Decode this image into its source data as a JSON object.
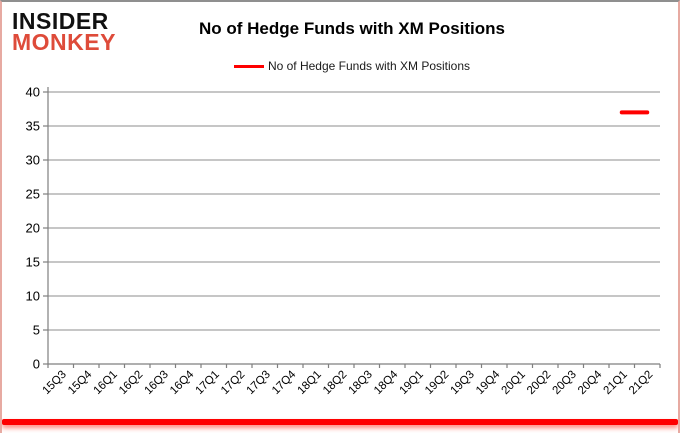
{
  "brand": {
    "line1": "INSIDER",
    "line2": "MONKEY"
  },
  "header": {
    "title": "No of Hedge Funds with XM Positions",
    "legend_label": "No of Hedge Funds with XM Positions"
  },
  "colors": {
    "series": "#fe0000",
    "grid": "#8c8c8c",
    "axis": "#7f7f7f",
    "tick_text": "#000000",
    "brand_red": "#de4b3a",
    "bottom_bar": "#fe0000"
  },
  "chart_data": {
    "type": "line",
    "title": "No of Hedge Funds with XM Positions",
    "xlabel": "",
    "ylabel": "",
    "categories": [
      "15Q3",
      "15Q4",
      "16Q1",
      "16Q2",
      "16Q3",
      "16Q4",
      "17Q1",
      "17Q2",
      "17Q3",
      "17Q4",
      "18Q1",
      "18Q2",
      "18Q3",
      "18Q4",
      "19Q1",
      "19Q2",
      "19Q3",
      "19Q4",
      "20Q1",
      "20Q2",
      "20Q3",
      "20Q4",
      "21Q1",
      "21Q2"
    ],
    "series": [
      {
        "name": "No of Hedge Funds with XM Positions",
        "color": "#fe0000",
        "values": [
          null,
          null,
          null,
          null,
          null,
          null,
          null,
          null,
          null,
          null,
          null,
          null,
          null,
          null,
          null,
          null,
          null,
          null,
          null,
          null,
          null,
          null,
          37,
          37
        ]
      }
    ],
    "ylim": [
      0,
      40
    ],
    "ytick_step": 5,
    "grid": true,
    "legend_position": "top"
  }
}
